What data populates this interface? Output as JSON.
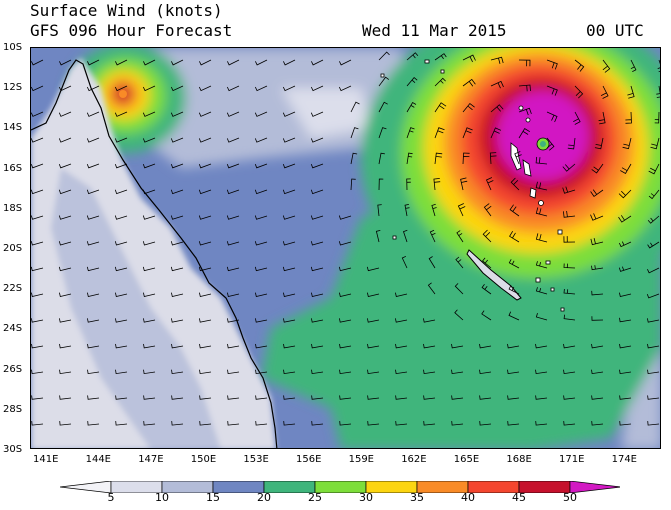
{
  "header": {
    "title": "Surface Wind (knots)",
    "subtitle": "GFS 096 Hour Forecast",
    "datetime": "Wed 11 Mar 2015",
    "utc": "00 UTC"
  },
  "axes": {
    "lat_labels": [
      "10S",
      "12S",
      "14S",
      "16S",
      "18S",
      "20S",
      "22S",
      "24S",
      "26S",
      "28S",
      "30S"
    ],
    "lon_labels": [
      "141E",
      "144E",
      "147E",
      "150E",
      "153E",
      "156E",
      "159E",
      "162E",
      "165E",
      "168E",
      "171E",
      "174E"
    ]
  },
  "colorbar": {
    "labels": [
      "5",
      "10",
      "15",
      "20",
      "25",
      "30",
      "35",
      "40",
      "45",
      "50"
    ],
    "colors": [
      "#f3f3f7",
      "#dcdeeb",
      "#b3bcd8",
      "#6f86c2",
      "#3fb57c",
      "#7dde3a",
      "#fcd511",
      "#f98b27",
      "#f4462f",
      "#c6112c",
      "#d219c3"
    ]
  },
  "palette": {
    "land": "#dcdde8",
    "ocean_low": "#6f86c2",
    "ocean_mid": "#b3bcd8",
    "green": "#3fb57c",
    "light_green": "#7dde3a",
    "yellow": "#fcd511",
    "orange": "#f98b27",
    "red": "#f4462f",
    "dark_red": "#c6112c",
    "magenta": "#d219c3"
  }
}
